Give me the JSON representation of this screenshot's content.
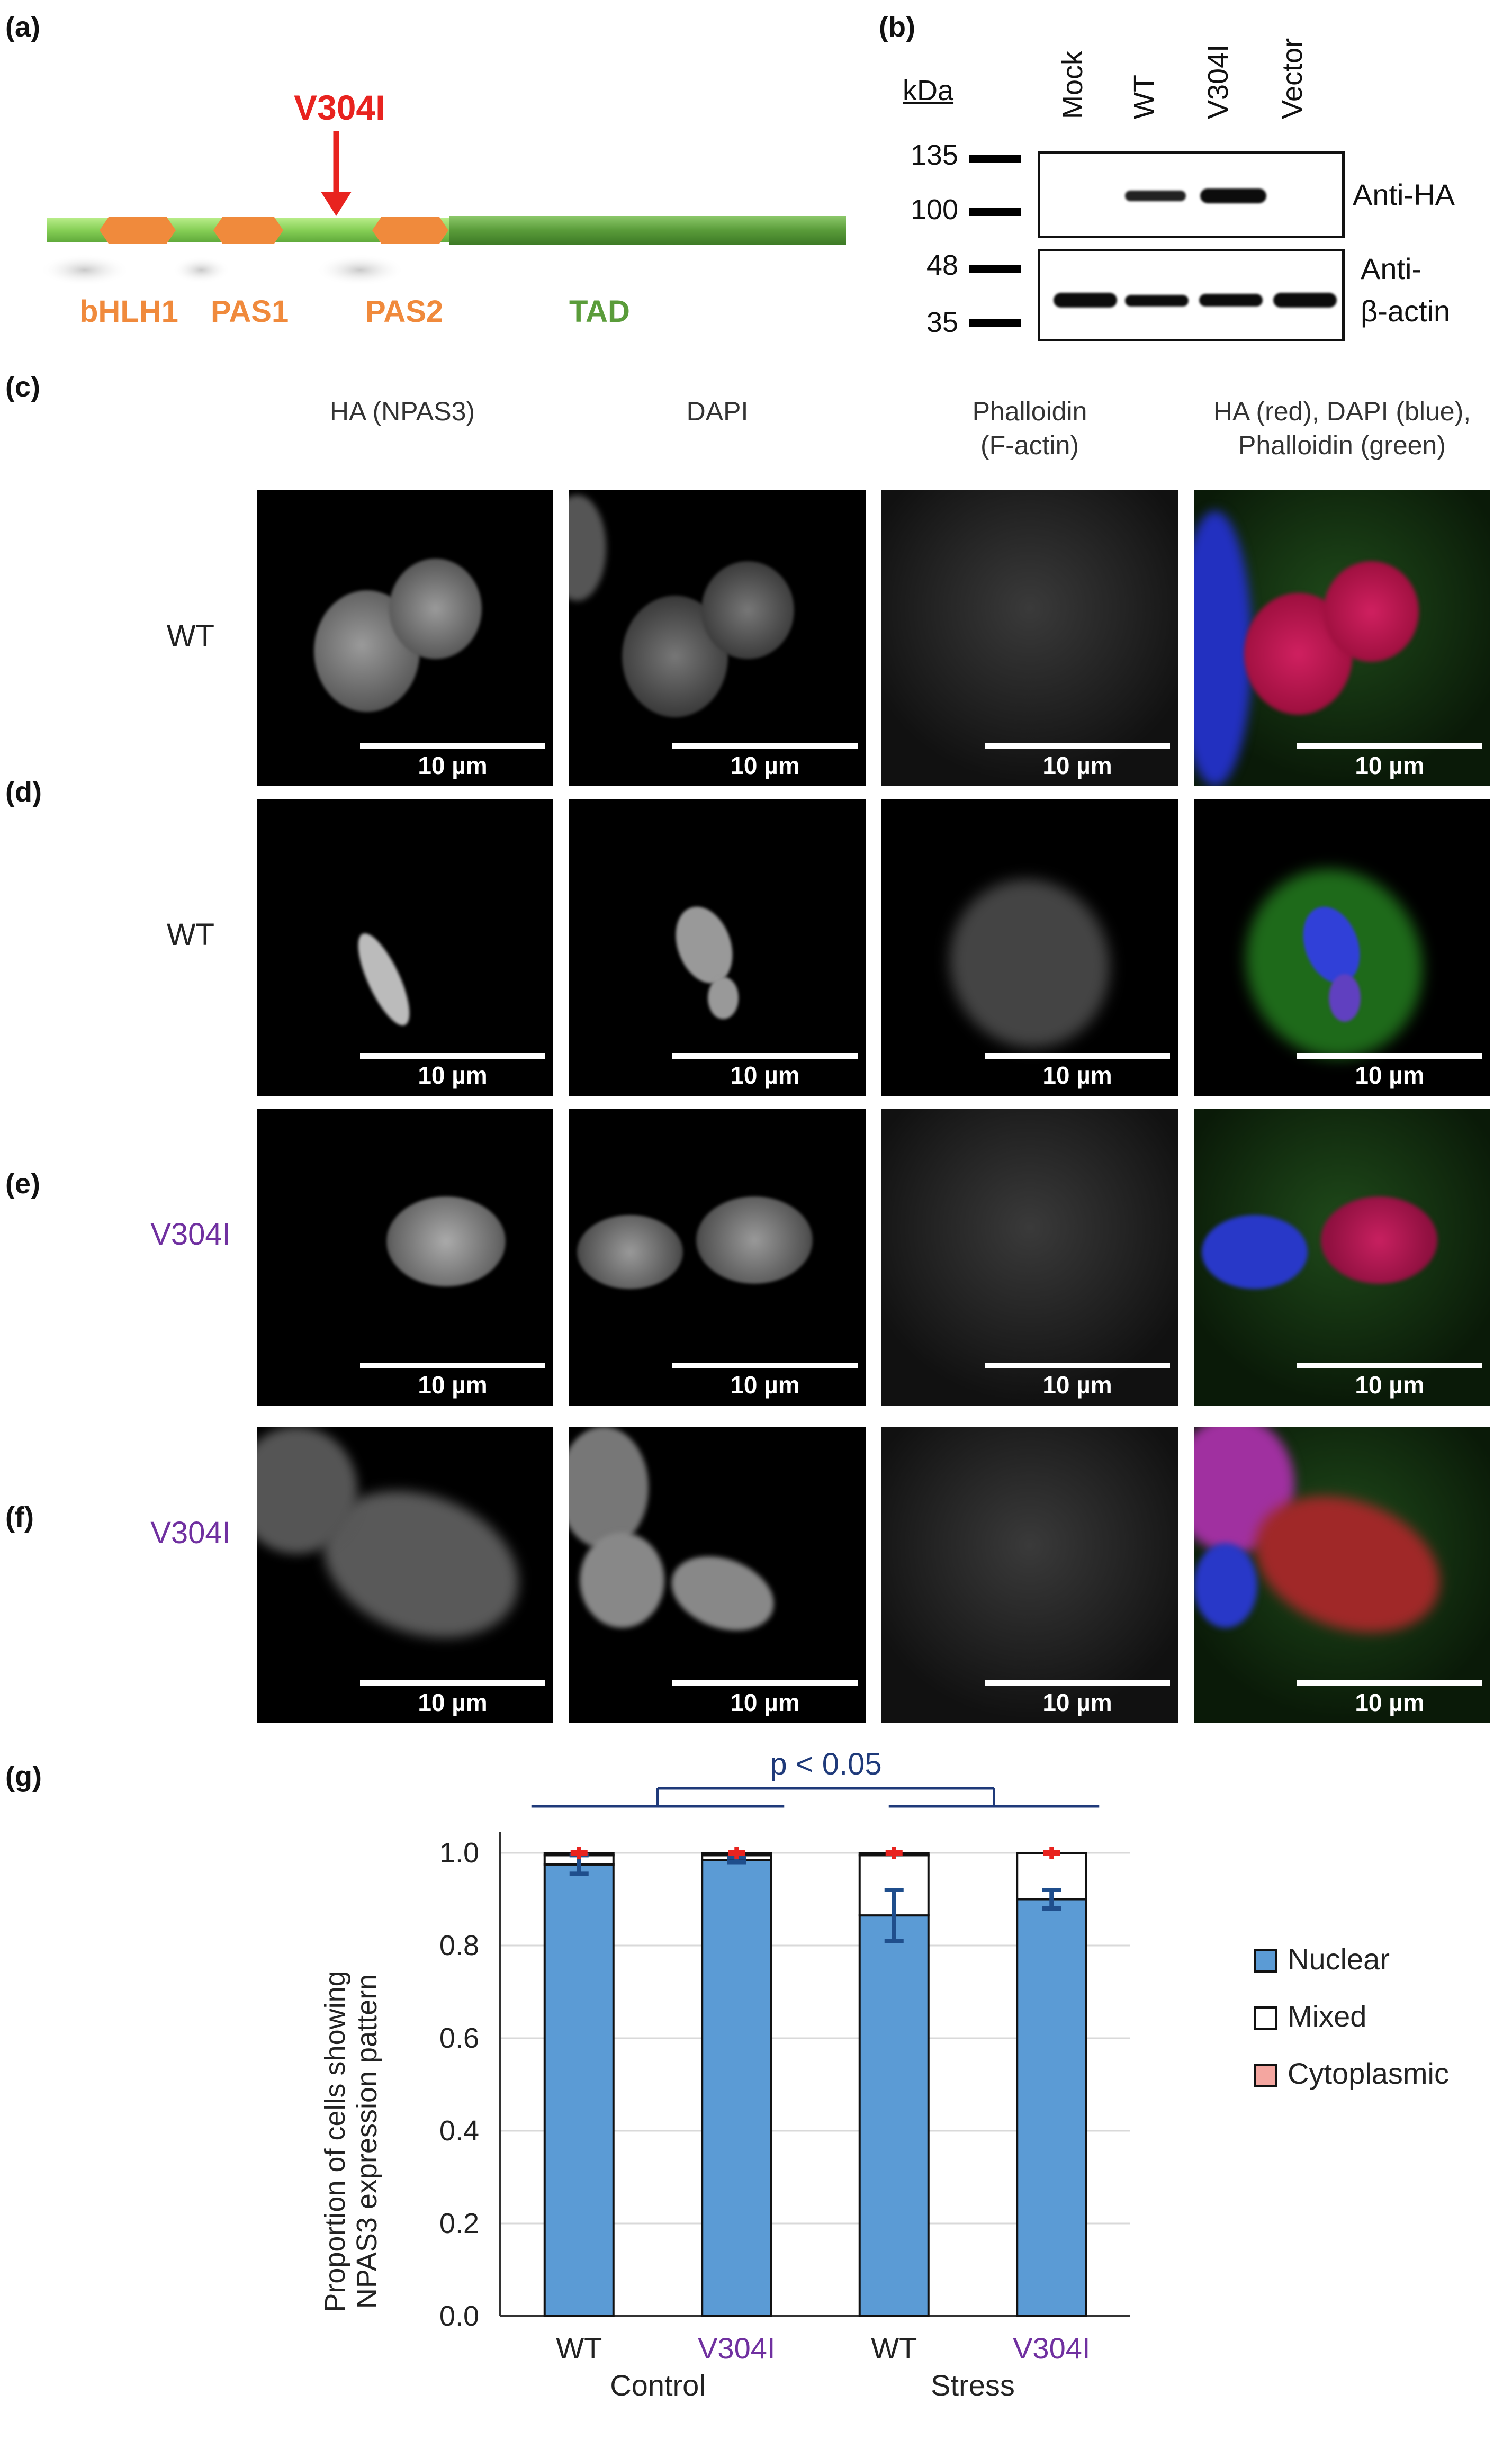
{
  "panel_letters": {
    "a": "(a)",
    "b": "(b)",
    "c": "(c)",
    "d": "(d)",
    "e": "(e)",
    "f": "(f)",
    "g": "(g)"
  },
  "schematic": {
    "mutation": "V304I",
    "domains": [
      "bHLH1",
      "PAS1",
      "PAS2",
      "TAD"
    ],
    "colors": {
      "protein": "#8ed35c",
      "motif": "#f08a3c",
      "tad": "#5a9c3a",
      "mutation": "#e8231f"
    }
  },
  "western": {
    "unit": "kDa",
    "lanes": [
      "Mock",
      "WT",
      "V304I",
      "Vector"
    ],
    "top_markers": [
      "135",
      "100"
    ],
    "bottom_markers": [
      "48",
      "35"
    ],
    "top_antibody": "Anti-HA",
    "bottom_antibody_line1": "Anti-",
    "bottom_antibody_line2": "β-actin"
  },
  "microscopy": {
    "column_titles": [
      {
        "line1": "HA (NPAS3)",
        "line2": ""
      },
      {
        "line1": "DAPI",
        "line2": ""
      },
      {
        "line1": "Phalloidin",
        "line2": "(F-actin)"
      },
      {
        "line1": "HA (red), DAPI (blue),",
        "line2": "Phalloidin (green)"
      }
    ],
    "rows": [
      {
        "letter": "(c)",
        "label": "WT"
      },
      {
        "letter": "(d)",
        "label": "WT"
      },
      {
        "letter": "(e)",
        "label": "V304I"
      },
      {
        "letter": "(f)",
        "label": "V304I"
      }
    ],
    "scale_label": "10 µm",
    "label_colors": {
      "WT": "#222222",
      "V304I": "#7030a0"
    }
  },
  "chart_data": {
    "type": "bar",
    "stacked": true,
    "ylabel_line1": "Proportion of cells showing",
    "ylabel_line2": "NPAS3 expression pattern",
    "ylim": [
      0,
      1.0
    ],
    "yticks": [
      "0.0",
      "0.2",
      "0.4",
      "0.6",
      "0.8",
      "1.0"
    ],
    "categories": [
      "WT",
      "V304I",
      "WT",
      "V304I"
    ],
    "groups": [
      "Control",
      "Stress"
    ],
    "series": [
      {
        "name": "Nuclear",
        "values": [
          0.975,
          0.985,
          0.865,
          0.9
        ],
        "errors": [
          0.02,
          0.005,
          0.055,
          0.02
        ],
        "color": "#5b9bd5"
      },
      {
        "name": "Mixed",
        "values": [
          0.02,
          0.01,
          0.13,
          0.1
        ],
        "color": "#ffffff"
      },
      {
        "name": "Cytoplasmic",
        "values": [
          0.005,
          0.005,
          0.005,
          0.0
        ],
        "color": "#f4a6a0"
      }
    ],
    "significance": "p < 0.05",
    "grid": true,
    "legend_position": "right",
    "category_colors": [
      "#222222",
      "#7030a0",
      "#222222",
      "#7030a0"
    ]
  }
}
